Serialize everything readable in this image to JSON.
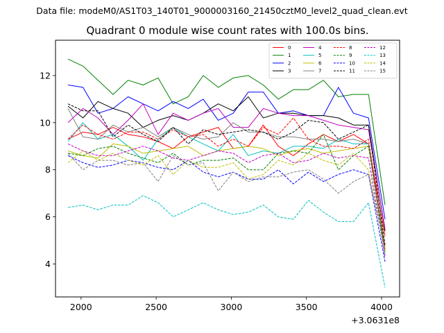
{
  "chart_data": {
    "type": "line",
    "suptitle": "Data file: modeM0/AS1T03_140T01_9000003160_21450cztM0_level2_quad_clean.evt",
    "title": "Quadrant 0 module wise count rates with 100.0s bins.",
    "xlabel": "",
    "ylabel": "",
    "x_offset_label": "+3.0631e8",
    "xlim": [
      1830,
      4120
    ],
    "ylim": [
      2.6,
      13.5
    ],
    "xticks": [
      2000,
      2500,
      3000,
      3500,
      4000
    ],
    "xtick_labels": [
      "2000",
      "2500",
      "3000",
      "3500",
      "4000"
    ],
    "yticks": [
      4,
      6,
      8,
      10,
      12
    ],
    "ytick_labels": [
      "4",
      "6",
      "8",
      "10",
      "12"
    ],
    "grid": false,
    "legend_position": "top-right",
    "legend_columns": 4,
    "x": [
      1913,
      2013,
      2113,
      2213,
      2313,
      2413,
      2513,
      2613,
      2713,
      2813,
      2913,
      3013,
      3113,
      3213,
      3313,
      3413,
      3513,
      3613,
      3713,
      3813,
      3913,
      4023
    ],
    "series": [
      {
        "name": "0",
        "color": "#ff0000",
        "dash": "solid",
        "values": [
          9.3,
          9.6,
          9.5,
          9.8,
          9.5,
          9.4,
          9.2,
          8.9,
          9.4,
          9.6,
          9.8,
          8.9,
          9.0,
          9.9,
          9.0,
          8.6,
          9.1,
          9.5,
          9.2,
          9.5,
          9.1,
          5.2
        ]
      },
      {
        "name": "1",
        "color": "#008000",
        "dash": "solid",
        "values": [
          12.7,
          12.4,
          11.8,
          11.2,
          11.8,
          11.6,
          11.9,
          10.8,
          11.1,
          12.0,
          11.5,
          11.9,
          12.0,
          11.6,
          11.0,
          11.4,
          11.4,
          11.8,
          11.1,
          11.2,
          11.2,
          6.5
        ]
      },
      {
        "name": "2",
        "color": "#0000ff",
        "dash": "solid",
        "values": [
          11.6,
          11.5,
          10.4,
          10.6,
          11.1,
          10.8,
          10.5,
          10.9,
          10.6,
          11.0,
          10.1,
          10.4,
          11.3,
          11.3,
          10.4,
          10.5,
          10.3,
          10.3,
          11.5,
          10.4,
          10.2,
          5.9
        ]
      },
      {
        "name": "3",
        "color": "#000000",
        "dash": "solid",
        "values": [
          10.7,
          10.2,
          10.9,
          10.6,
          10.4,
          9.8,
          10.1,
          10.3,
          10.1,
          10.4,
          10.8,
          10.5,
          11.1,
          10.2,
          10.4,
          10.4,
          10.3,
          10.3,
          10.2,
          9.9,
          9.9,
          5.4
        ]
      },
      {
        "name": "4",
        "color": "#bf00bf",
        "dash": "solid",
        "values": [
          10.0,
          10.6,
          10.2,
          9.5,
          10.1,
          10.8,
          9.5,
          10.4,
          10.1,
          10.4,
          10.6,
          9.8,
          9.8,
          10.6,
          10.4,
          10.3,
          10.3,
          10.1,
          9.9,
          9.8,
          9.7,
          5.5
        ]
      },
      {
        "name": "5",
        "color": "#00bfbf",
        "dash": "solid",
        "values": [
          9.2,
          10.0,
          9.3,
          9.5,
          9.0,
          8.4,
          9.3,
          9.8,
          9.4,
          9.1,
          8.8,
          9.5,
          8.6,
          8.8,
          8.7,
          9.0,
          9.0,
          8.9,
          9.3,
          9.1,
          9.1,
          4.4
        ]
      },
      {
        "name": "6",
        "color": "#bfbf00",
        "dash": "solid",
        "values": [
          8.8,
          8.6,
          8.5,
          9.1,
          9.0,
          8.7,
          8.8,
          8.9,
          9.0,
          8.6,
          8.8,
          8.9,
          9.0,
          8.9,
          8.6,
          8.8,
          8.9,
          8.7,
          8.8,
          8.9,
          9.0,
          4.7
        ]
      },
      {
        "name": "7",
        "color": "#808080",
        "dash": "solid",
        "values": [
          10.6,
          9.4,
          9.3,
          9.9,
          9.6,
          9.8,
          9.4,
          9.8,
          9.5,
          9.3,
          9.4,
          10.0,
          9.6,
          9.6,
          9.4,
          9.4,
          9.3,
          9.3,
          9.2,
          9.3,
          9.1,
          4.6
        ]
      },
      {
        "name": "8",
        "color": "#ff0000",
        "dash": "dashed",
        "values": [
          9.3,
          9.9,
          9.5,
          9.3,
          9.6,
          9.6,
          9.3,
          9.7,
          9.4,
          9.5,
          9.0,
          9.3,
          9.0,
          9.8,
          9.5,
          10.2,
          9.3,
          9.0,
          9.0,
          8.9,
          9.3,
          4.6
        ]
      },
      {
        "name": "9",
        "color": "#008000",
        "dash": "dashed",
        "values": [
          8.7,
          8.6,
          8.9,
          9.0,
          8.7,
          8.5,
          8.3,
          8.7,
          8.2,
          8.4,
          8.4,
          8.5,
          8.0,
          8.0,
          8.7,
          8.8,
          8.7,
          9.5,
          8.0,
          8.6,
          9.0,
          4.5
        ]
      },
      {
        "name": "10",
        "color": "#0000ff",
        "dash": "dashed",
        "values": [
          8.6,
          8.3,
          8.1,
          8.2,
          8.4,
          8.3,
          8.1,
          8.0,
          8.4,
          7.9,
          7.7,
          7.9,
          7.6,
          7.6,
          8.0,
          7.4,
          7.9,
          7.5,
          7.8,
          8.0,
          7.8,
          4.1
        ]
      },
      {
        "name": "11",
        "color": "#000000",
        "dash": "dashed",
        "values": [
          10.8,
          10.5,
          10.5,
          9.4,
          9.9,
          9.5,
          9.2,
          9.8,
          9.1,
          9.7,
          9.5,
          9.6,
          9.7,
          9.6,
          9.3,
          9.6,
          10.1,
          10.0,
          9.3,
          9.6,
          9.9,
          4.8
        ]
      },
      {
        "name": "12",
        "color": "#bf00bf",
        "dash": "dashed",
        "values": [
          9.1,
          8.8,
          8.6,
          8.6,
          8.8,
          9.0,
          8.8,
          8.5,
          8.4,
          8.6,
          8.8,
          8.7,
          8.3,
          8.6,
          8.7,
          8.3,
          8.4,
          8.7,
          8.5,
          8.6,
          8.5,
          4.3
        ]
      },
      {
        "name": "13",
        "color": "#00bfbf",
        "dash": "dashed",
        "values": [
          6.4,
          6.5,
          6.3,
          6.5,
          6.5,
          6.9,
          6.6,
          6.0,
          6.3,
          6.6,
          6.3,
          6.1,
          6.2,
          6.5,
          6.0,
          5.9,
          6.7,
          6.2,
          5.8,
          5.8,
          6.6,
          3.0
        ]
      },
      {
        "name": "14",
        "color": "#bfbf00",
        "dash": "dashed",
        "values": [
          8.3,
          8.8,
          8.4,
          8.7,
          8.4,
          8.2,
          8.6,
          7.8,
          8.4,
          8.1,
          8.1,
          8.3,
          7.6,
          7.8,
          8.4,
          8.2,
          8.7,
          8.4,
          8.2,
          8.7,
          8.0,
          4.5
        ]
      },
      {
        "name": "15",
        "color": "#808080",
        "dash": "dashed",
        "values": [
          8.7,
          8.0,
          8.4,
          8.4,
          8.2,
          8.3,
          7.5,
          8.6,
          8.2,
          8.3,
          7.1,
          7.9,
          7.5,
          7.7,
          7.7,
          7.9,
          8.0,
          7.6,
          7.0,
          7.5,
          7.8,
          4.6
        ]
      }
    ]
  }
}
